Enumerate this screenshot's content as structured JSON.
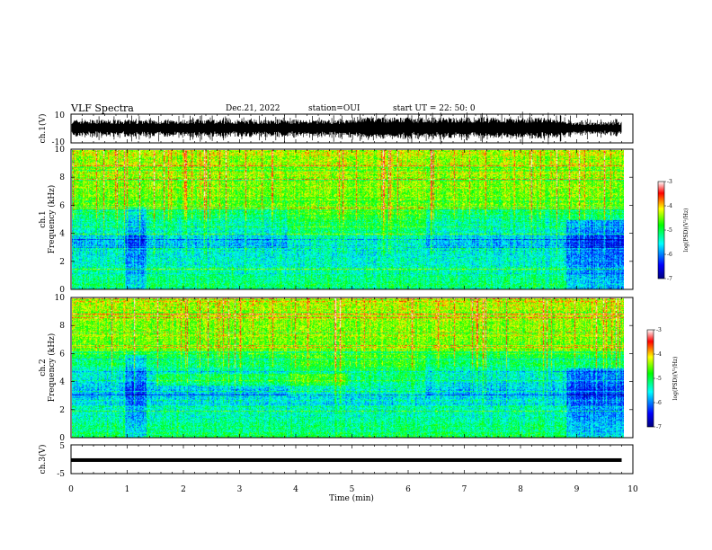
{
  "header": {
    "title": "VLF Spectra",
    "date": "Dec.21, 2022",
    "station": "station=OUI",
    "start": "start UT =  22: 50: 0"
  },
  "colors": {
    "spectral_scale": [
      "#00007f",
      "#0000ff",
      "#00ffff",
      "#00ff00",
      "#ffff00",
      "#ff0000",
      "#ffffff"
    ],
    "waveform": "#000000",
    "axes": "#000000"
  },
  "chart_data": [
    {
      "type": "line",
      "name": "ch.1 waveform",
      "ylabel": "ch.1(V)",
      "ylim": [
        -10,
        10
      ],
      "yticks": [
        "10",
        "-10"
      ],
      "xlim": [
        0,
        10
      ],
      "description_values": {
        "amplitude_typical_V": 5,
        "amplitude_max_V": 9.5,
        "signal_end_min": 9.8
      }
    },
    {
      "type": "heatmap",
      "name": "ch.1 spectrogram",
      "ylabel": "ch.1\nFrequency (kHz)",
      "ylim": [
        0,
        10
      ],
      "yticks": [
        "0",
        "2",
        "4",
        "6",
        "8",
        "10"
      ],
      "xlim": [
        0,
        10
      ],
      "colorbar": {
        "label": "log(PSD)(V²/Hz)",
        "range": [
          -7,
          -3
        ],
        "ticks": [
          "-3",
          "-4",
          "-5",
          "-6",
          "-7"
        ]
      }
    },
    {
      "type": "heatmap",
      "name": "ch.2 spectrogram",
      "ylabel": "ch.2\nFrequency (kHz)",
      "ylim": [
        0,
        10
      ],
      "yticks": [
        "0",
        "2",
        "4",
        "6",
        "8",
        "10"
      ],
      "xlim": [
        0,
        10
      ],
      "colorbar": {
        "label": "log(PSD)(V²/Hz)",
        "range": [
          -7,
          -3
        ],
        "ticks": [
          "-3",
          "-4",
          "-5",
          "-6",
          "-7"
        ]
      }
    },
    {
      "type": "line",
      "name": "ch.3 waveform",
      "ylabel": "ch.3(V)",
      "ylim": [
        -5,
        5
      ],
      "yticks": [
        "5",
        "-5"
      ],
      "xlim": [
        0,
        10
      ],
      "xlabel": "Time (min)",
      "xticks": [
        "0",
        "1",
        "2",
        "3",
        "4",
        "5",
        "6",
        "7",
        "8",
        "9",
        "10"
      ],
      "series": [
        {
          "x": [
            0,
            9.8
          ],
          "y": [
            -0.3,
            -0.3
          ]
        }
      ]
    }
  ]
}
